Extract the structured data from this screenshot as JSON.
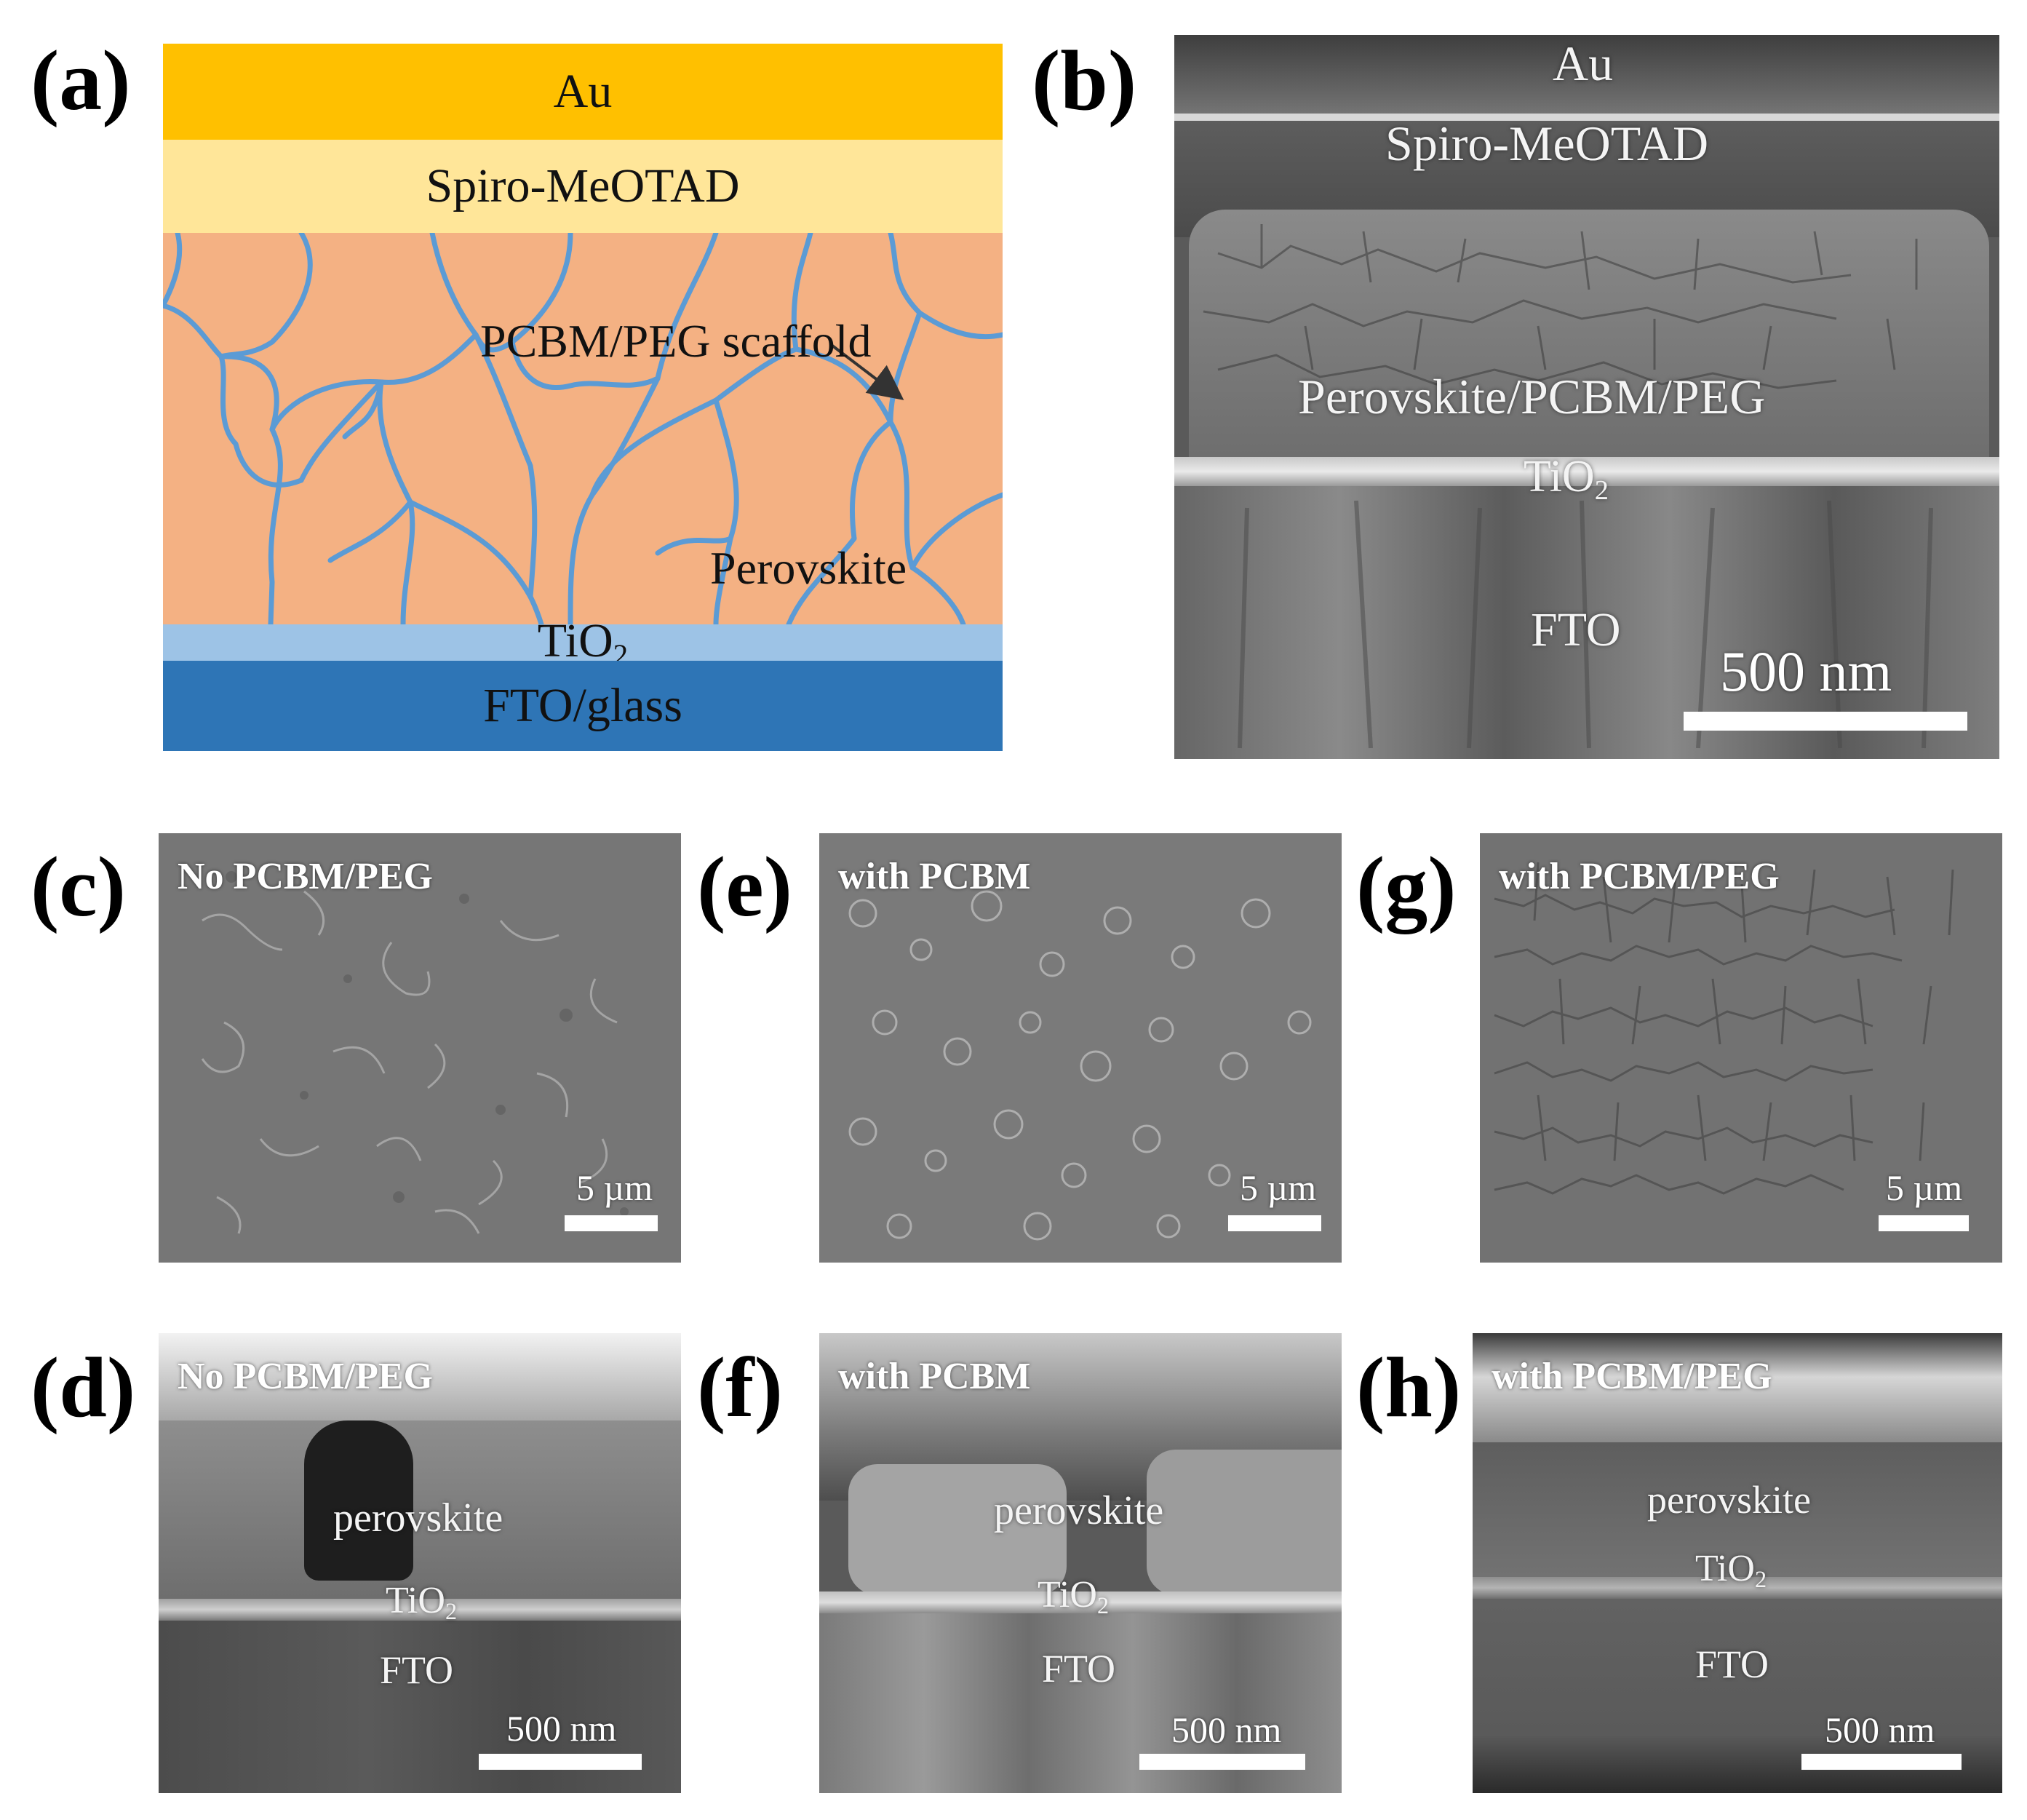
{
  "panels": {
    "a": {
      "letter": "(a)",
      "layers": {
        "au": "Au",
        "spiro": "Spiro-MeOTAD",
        "scaffold": "PCBM/PEG scaffold",
        "perovskite": "Perovskite",
        "tio2_base": "TiO",
        "tio2_sub": "2",
        "fto": "FTO/glass"
      },
      "colors": {
        "au": "#FFC000",
        "spiro": "#FFE699",
        "perovskite": "#F4B183",
        "scaffold_lines": "#5B9BD5",
        "tio2": "#9DC3E6",
        "fto": "#2E75B6"
      }
    },
    "b": {
      "letter": "(b)",
      "labels": {
        "au": "Au",
        "spiro": "Spiro-MeOTAD",
        "perovskite": "Perovskite/PCBM/PEG",
        "tio2_base": "TiO",
        "tio2_sub": "2",
        "fto": "FTO"
      },
      "scale": "500 nm"
    },
    "c": {
      "letter": "(c)",
      "tag": "No PCBM/PEG",
      "scale": "5 µm"
    },
    "e": {
      "letter": "(e)",
      "tag": "with PCBM",
      "scale": "5 µm"
    },
    "g": {
      "letter": "(g)",
      "tag": "with PCBM/PEG",
      "scale": "5 µm"
    },
    "d": {
      "letter": "(d)",
      "tag": "No PCBM/PEG",
      "perovskite": "perovskite",
      "tio2_base": "TiO",
      "tio2_sub": "2",
      "fto": "FTO",
      "scale": "500 nm"
    },
    "f": {
      "letter": "(f)",
      "tag": "with PCBM",
      "perovskite": "perovskite",
      "tio2_base": "TiO",
      "tio2_sub": "2",
      "fto": "FTO",
      "scale": "500 nm"
    },
    "h": {
      "letter": "(h)",
      "tag": "with PCBM/PEG",
      "perovskite": "perovskite",
      "tio2_base": "TiO",
      "tio2_sub": "2",
      "fto": "FTO",
      "scale": "500 nm"
    }
  }
}
